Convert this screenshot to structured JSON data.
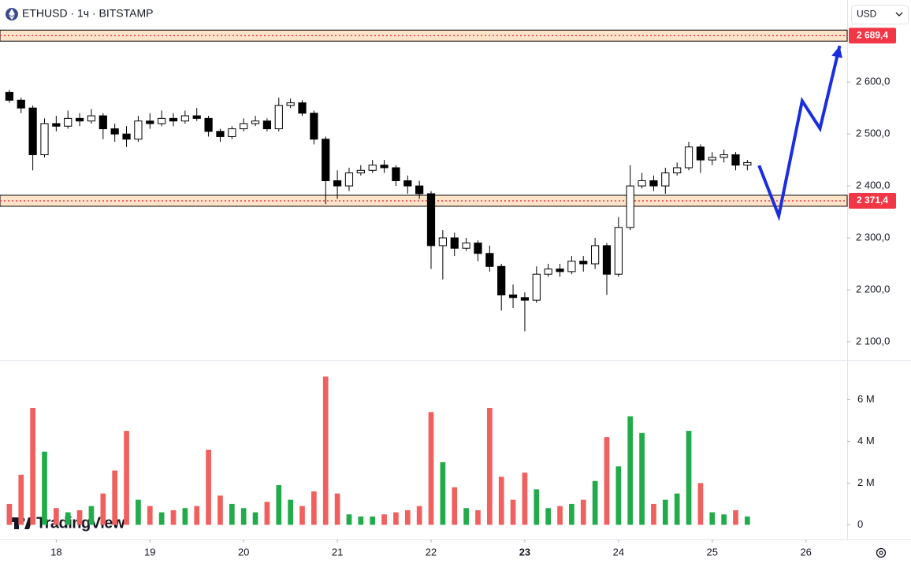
{
  "chart_data": {
    "type": "candlestick",
    "title": "ETHUSD · 1ч · BITSTAMP",
    "currency": "USD",
    "logo": "TradingView",
    "x": [
      17.5,
      17.625,
      17.75,
      17.875,
      18.0,
      18.125,
      18.25,
      18.375,
      18.5,
      18.625,
      18.75,
      18.875,
      19.0,
      19.125,
      19.25,
      19.375,
      19.5,
      19.625,
      19.75,
      19.875,
      20.0,
      20.125,
      20.25,
      20.375,
      20.5,
      20.625,
      20.75,
      20.875,
      21.0,
      21.125,
      21.25,
      21.375,
      21.5,
      21.625,
      21.75,
      21.875,
      22.0,
      22.125,
      22.25,
      22.375,
      22.5,
      22.625,
      22.75,
      22.875,
      23.0,
      23.125,
      23.25,
      23.375,
      23.5,
      23.625,
      23.75,
      23.875,
      24.0,
      24.125,
      24.25,
      24.375,
      24.5,
      24.625,
      24.75,
      24.875,
      25.0,
      25.125,
      25.25,
      25.375
    ],
    "open": [
      2580,
      2565,
      2550,
      2460,
      2520,
      2515,
      2530,
      2525,
      2535,
      2510,
      2500,
      2490,
      2525,
      2520,
      2530,
      2525,
      2535,
      2530,
      2505,
      2495,
      2510,
      2520,
      2525,
      2510,
      2555,
      2560,
      2540,
      2490,
      2410,
      2400,
      2425,
      2430,
      2440,
      2435,
      2410,
      2400,
      2385,
      2285,
      2300,
      2280,
      2290,
      2270,
      2245,
      2190,
      2185,
      2180,
      2230,
      2240,
      2235,
      2255,
      2250,
      2285,
      2230,
      2320,
      2400,
      2410,
      2400,
      2425,
      2435,
      2475,
      2450,
      2455,
      2460,
      2440
    ],
    "high": [
      2585,
      2570,
      2555,
      2530,
      2535,
      2545,
      2540,
      2548,
      2540,
      2520,
      2515,
      2535,
      2540,
      2545,
      2540,
      2545,
      2550,
      2535,
      2510,
      2515,
      2530,
      2535,
      2530,
      2570,
      2568,
      2565,
      2545,
      2495,
      2430,
      2435,
      2440,
      2450,
      2450,
      2440,
      2420,
      2410,
      2390,
      2315,
      2310,
      2300,
      2295,
      2285,
      2250,
      2210,
      2195,
      2245,
      2250,
      2250,
      2265,
      2265,
      2300,
      2290,
      2340,
      2440,
      2425,
      2420,
      2435,
      2445,
      2485,
      2480,
      2465,
      2470,
      2465,
      2450
    ],
    "low": [
      2560,
      2540,
      2430,
      2455,
      2505,
      2510,
      2515,
      2520,
      2490,
      2485,
      2475,
      2485,
      2510,
      2515,
      2515,
      2520,
      2525,
      2495,
      2485,
      2490,
      2505,
      2515,
      2505,
      2505,
      2550,
      2535,
      2480,
      2365,
      2375,
      2390,
      2420,
      2425,
      2425,
      2400,
      2385,
      2375,
      2240,
      2220,
      2265,
      2275,
      2255,
      2235,
      2160,
      2165,
      2120,
      2175,
      2225,
      2225,
      2230,
      2235,
      2240,
      2190,
      2225,
      2315,
      2395,
      2390,
      2385,
      2420,
      2430,
      2425,
      2440,
      2445,
      2430,
      2430
    ],
    "close": [
      2565,
      2550,
      2460,
      2520,
      2515,
      2530,
      2525,
      2535,
      2510,
      2500,
      2490,
      2525,
      2520,
      2530,
      2525,
      2535,
      2530,
      2505,
      2495,
      2510,
      2520,
      2525,
      2510,
      2555,
      2560,
      2540,
      2490,
      2410,
      2400,
      2425,
      2430,
      2440,
      2435,
      2410,
      2400,
      2385,
      2285,
      2300,
      2280,
      2290,
      2270,
      2245,
      2190,
      2185,
      2180,
      2230,
      2240,
      2235,
      2255,
      2250,
      2285,
      2230,
      2320,
      2400,
      2410,
      2400,
      2425,
      2435,
      2475,
      2450,
      2455,
      2460,
      2440,
      2445
    ],
    "volume": [
      1.0,
      2.4,
      5.6,
      3.5,
      0.8,
      0.6,
      0.7,
      0.9,
      1.5,
      2.6,
      4.5,
      1.2,
      0.9,
      0.6,
      0.7,
      0.8,
      0.9,
      3.6,
      1.4,
      1.0,
      0.8,
      0.6,
      1.1,
      1.9,
      1.2,
      0.9,
      1.6,
      7.1,
      1.5,
      0.5,
      0.4,
      0.4,
      0.5,
      0.6,
      0.7,
      0.9,
      5.4,
      3.0,
      1.8,
      0.8,
      0.7,
      5.6,
      2.3,
      1.2,
      2.5,
      1.7,
      0.8,
      0.9,
      1.0,
      1.2,
      2.1,
      4.2,
      2.8,
      5.2,
      4.4,
      1.0,
      1.2,
      1.5,
      4.5,
      2.0,
      0.6,
      0.5,
      0.7,
      0.4
    ],
    "up_color": "#ffffff",
    "down_color": "#000000",
    "volume_up_color": "#22ab4a",
    "volume_down_color": "#f0605e",
    "xlim": [
      17.4,
      26.44
    ],
    "xticks": [
      18,
      19,
      20,
      21,
      22,
      23,
      24,
      25,
      26
    ],
    "highlight_xtick": 23,
    "ylim": [
      2065,
      2758
    ],
    "yticks": [
      {
        "value": 2100,
        "label": "2 100,0"
      },
      {
        "value": 2200,
        "label": "2 200,0"
      },
      {
        "value": 2300,
        "label": "2 300,0"
      },
      {
        "value": 2400,
        "label": "2 400,0"
      },
      {
        "value": 2500,
        "label": "2 500,0"
      },
      {
        "value": 2600,
        "label": "2 600,0"
      }
    ],
    "volume_lim": [
      -0.7,
      7.9
    ],
    "volume_ticks": [
      0,
      {
        "value": 2,
        "label": "2 M"
      },
      {
        "value": 4,
        "label": "4 M"
      },
      {
        "value": 6,
        "label": "6 M"
      }
    ],
    "levels": [
      {
        "value": 2689.4,
        "label": "2 689,4"
      },
      {
        "value": 2371.4,
        "label": "2 371,4"
      }
    ],
    "level_color": "#f23645",
    "projection": {
      "x": [
        25.5,
        25.71,
        25.96,
        26.15,
        26.36
      ],
      "y": [
        2439.4,
        2342.4,
        2563.6,
        2510.6,
        2669.7
      ],
      "color": "#1a2ee0"
    }
  }
}
